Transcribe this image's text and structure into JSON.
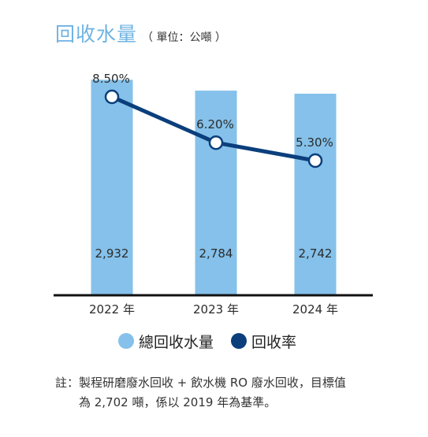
{
  "title": "回收水量",
  "subtitle": "（ 單位：公噸 ）",
  "chart_data": {
    "type": "bar",
    "categories": [
      "2022 年",
      "2023 年",
      "2024 年"
    ],
    "series": [
      {
        "name": "總回收水量",
        "kind": "bar",
        "values": [
          2932,
          2784,
          2742
        ],
        "value_labels": [
          "2,932",
          "2,784",
          "2,742"
        ],
        "color": "#85c1ea"
      },
      {
        "name": "回收率",
        "kind": "line",
        "values": [
          8.5,
          6.2,
          5.3
        ],
        "value_labels": [
          "8.50%",
          "6.20%",
          "5.30%"
        ],
        "color": "#0b3f7c"
      }
    ],
    "grid": false,
    "legend_position": "bottom"
  },
  "note": {
    "prefix": "註：",
    "lines": [
      "製程研磨廢水回收 + 飲水機 RO 廢水回收，目標值",
      "為 2,702 噸，係以 2019 年為基準。"
    ]
  }
}
